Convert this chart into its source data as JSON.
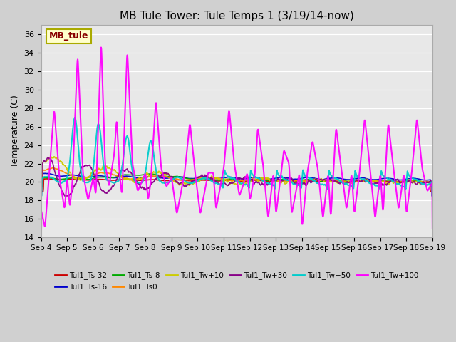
{
  "title": "MB Tule Tower: Tule Temps 1 (3/19/14-now)",
  "ylabel": "Temperature (C)",
  "xlim": [
    0,
    15
  ],
  "ylim": [
    14,
    37
  ],
  "yticks": [
    14,
    16,
    18,
    20,
    22,
    24,
    26,
    28,
    30,
    32,
    34,
    36
  ],
  "xtick_labels": [
    "Sep 4",
    "Sep 5",
    "Sep 6",
    "Sep 7",
    "Sep 8",
    "Sep 9",
    "Sep 10",
    "Sep 11",
    "Sep 12",
    "Sep 13",
    "Sep 14",
    "Sep 15",
    "Sep 16",
    "Sep 17",
    "Sep 18",
    "Sep 19"
  ],
  "series_colors": {
    "Tul1_Ts-32": "#cc0000",
    "Tul1_Ts-16": "#0000cc",
    "Tul1_Ts-8": "#00aa00",
    "Tul1_Ts0": "#ff8800",
    "Tul1_Tw+10": "#cccc00",
    "Tul1_Tw+30": "#880088",
    "Tul1_Tw+50": "#00cccc",
    "Tul1_Tw+100": "#ff00ff"
  },
  "legend_box_fc": "#ffffcc",
  "legend_box_ec": "#aaaa00",
  "legend_text": "MB_tule",
  "legend_text_color": "#880000",
  "fig_bg": "#d0d0d0",
  "ax_bg": "#e8e8e8"
}
